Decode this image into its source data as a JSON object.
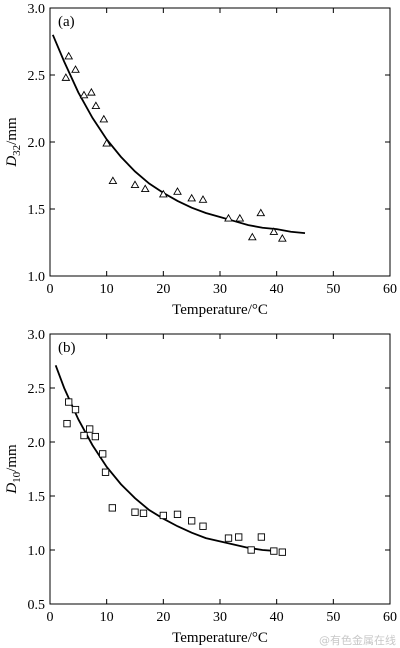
{
  "chart_data": [
    {
      "type": "scatter",
      "panel_label": "(a)",
      "xlabel": "Temperature/°C",
      "ylabel_main": "D",
      "ylabel_sub": "32",
      "ylabel_unit": "/mm",
      "xlim": [
        0,
        60
      ],
      "ylim": [
        1.0,
        3.0
      ],
      "xticks": [
        0,
        10,
        20,
        30,
        40,
        50,
        60
      ],
      "yticks": [
        1.0,
        1.5,
        2.0,
        2.5,
        3.0
      ],
      "marker": "triangle",
      "points": [
        [
          2.8,
          2.48
        ],
        [
          3.3,
          2.64
        ],
        [
          4.5,
          2.54
        ],
        [
          6.0,
          2.35
        ],
        [
          7.3,
          2.37
        ],
        [
          8.1,
          2.27
        ],
        [
          9.5,
          2.17
        ],
        [
          10.0,
          1.99
        ],
        [
          11.1,
          1.71
        ],
        [
          15.0,
          1.68
        ],
        [
          16.8,
          1.65
        ],
        [
          20.0,
          1.61
        ],
        [
          22.5,
          1.63
        ],
        [
          25.0,
          1.58
        ],
        [
          27.0,
          1.57
        ],
        [
          31.5,
          1.43
        ],
        [
          33.5,
          1.43
        ],
        [
          35.7,
          1.29
        ],
        [
          37.2,
          1.47
        ],
        [
          39.5,
          1.33
        ],
        [
          41.0,
          1.28
        ]
      ],
      "fit_curve": [
        [
          0.5,
          2.8
        ],
        [
          2.5,
          2.6
        ],
        [
          5.0,
          2.37
        ],
        [
          7.5,
          2.18
        ],
        [
          10.0,
          2.02
        ],
        [
          12.5,
          1.89
        ],
        [
          15.0,
          1.78
        ],
        [
          17.5,
          1.69
        ],
        [
          20.0,
          1.62
        ],
        [
          22.5,
          1.56
        ],
        [
          25.0,
          1.51
        ],
        [
          27.5,
          1.47
        ],
        [
          30.0,
          1.44
        ],
        [
          32.5,
          1.41
        ],
        [
          35.0,
          1.38
        ],
        [
          37.5,
          1.36
        ],
        [
          40.0,
          1.35
        ],
        [
          42.5,
          1.33
        ],
        [
          45.0,
          1.32
        ]
      ]
    },
    {
      "type": "scatter",
      "panel_label": "(b)",
      "xlabel": "Temperature/°C",
      "ylabel_main": "D",
      "ylabel_sub": "10",
      "ylabel_unit": "/mm",
      "xlim": [
        0,
        60
      ],
      "ylim": [
        0.5,
        3.0
      ],
      "xticks": [
        0,
        10,
        20,
        30,
        40,
        50,
        60
      ],
      "yticks": [
        0.5,
        1.0,
        1.5,
        2.0,
        2.5,
        3.0
      ],
      "marker": "square",
      "points": [
        [
          3.0,
          2.17
        ],
        [
          3.3,
          2.37
        ],
        [
          4.5,
          2.3
        ],
        [
          6.0,
          2.06
        ],
        [
          7.0,
          2.12
        ],
        [
          8.0,
          2.05
        ],
        [
          9.3,
          1.89
        ],
        [
          9.8,
          1.72
        ],
        [
          11.0,
          1.39
        ],
        [
          15.0,
          1.35
        ],
        [
          16.5,
          1.34
        ],
        [
          20.0,
          1.32
        ],
        [
          22.5,
          1.33
        ],
        [
          25.0,
          1.27
        ],
        [
          27.0,
          1.22
        ],
        [
          31.5,
          1.11
        ],
        [
          33.3,
          1.12
        ],
        [
          35.5,
          1.0
        ],
        [
          37.3,
          1.12
        ],
        [
          39.5,
          0.99
        ],
        [
          41.0,
          0.98
        ]
      ],
      "fit_curve": [
        [
          1.0,
          2.71
        ],
        [
          2.5,
          2.5
        ],
        [
          5.0,
          2.21
        ],
        [
          7.5,
          1.97
        ],
        [
          10.0,
          1.77
        ],
        [
          12.5,
          1.61
        ],
        [
          15.0,
          1.48
        ],
        [
          17.5,
          1.37
        ],
        [
          20.0,
          1.29
        ],
        [
          22.5,
          1.22
        ],
        [
          25.0,
          1.16
        ],
        [
          27.5,
          1.11
        ],
        [
          30.0,
          1.08
        ],
        [
          32.5,
          1.05
        ],
        [
          35.0,
          1.02
        ],
        [
          37.5,
          1.0
        ],
        [
          40.0,
          0.99
        ]
      ]
    }
  ],
  "watermark": "@有色金属在线"
}
